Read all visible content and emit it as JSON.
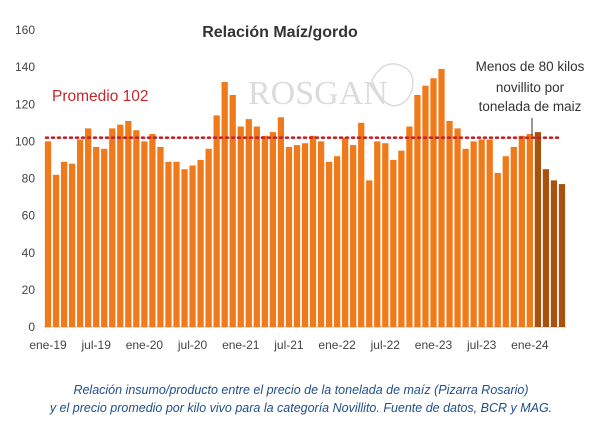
{
  "chart_data": {
    "type": "bar",
    "title": "Relación Maíz/gordo",
    "ylim": [
      0,
      160
    ],
    "yticks": [
      0,
      20,
      40,
      60,
      80,
      100,
      120,
      140,
      160
    ],
    "x_tick_labels": [
      {
        "index": 0,
        "label": "ene-19"
      },
      {
        "index": 6,
        "label": "jul-19"
      },
      {
        "index": 12,
        "label": "ene-20"
      },
      {
        "index": 18,
        "label": "jul-20"
      },
      {
        "index": 24,
        "label": "ene-21"
      },
      {
        "index": 30,
        "label": "jul-21"
      },
      {
        "index": 36,
        "label": "ene-22"
      },
      {
        "index": 42,
        "label": "jul-22"
      },
      {
        "index": 48,
        "label": "ene-23"
      },
      {
        "index": 54,
        "label": "jul-23"
      },
      {
        "index": 60,
        "label": "ene-24"
      }
    ],
    "series": [
      {
        "values": [
          100,
          82,
          89,
          88,
          101,
          107,
          97,
          96,
          107,
          109,
          111,
          106,
          100,
          104,
          97,
          89,
          89,
          85,
          87,
          90,
          96,
          114,
          132,
          125,
          108,
          112,
          108,
          103,
          105,
          113,
          97,
          98,
          99,
          103,
          100,
          89,
          92,
          102,
          98,
          110,
          79,
          100,
          99,
          90,
          95,
          108,
          125,
          130,
          134,
          139,
          111,
          107,
          96,
          100,
          101,
          101,
          83,
          92,
          97,
          103,
          104,
          105,
          85,
          79,
          77
        ],
        "color": "#f07a1a",
        "highlight_color": "#a8520e",
        "highlight_from_index": 61
      }
    ],
    "reference_line": {
      "value": 102,
      "label": "Promedio 102",
      "color": "#c0282d"
    },
    "annotation": [
      "Menos de 80 kilos",
      "novillito por",
      "tonelada de maiz"
    ],
    "watermark": "ROSGAN",
    "grid": false,
    "legend": "none"
  },
  "caption": {
    "line1": "Relación insumo/producto entre el precio de la tonelada de maíz (Pizarra Rosario)",
    "line2": "y el precio promedio por kilo vivo para la categoría Novillito. Fuente de datos, BCR y MAG."
  }
}
